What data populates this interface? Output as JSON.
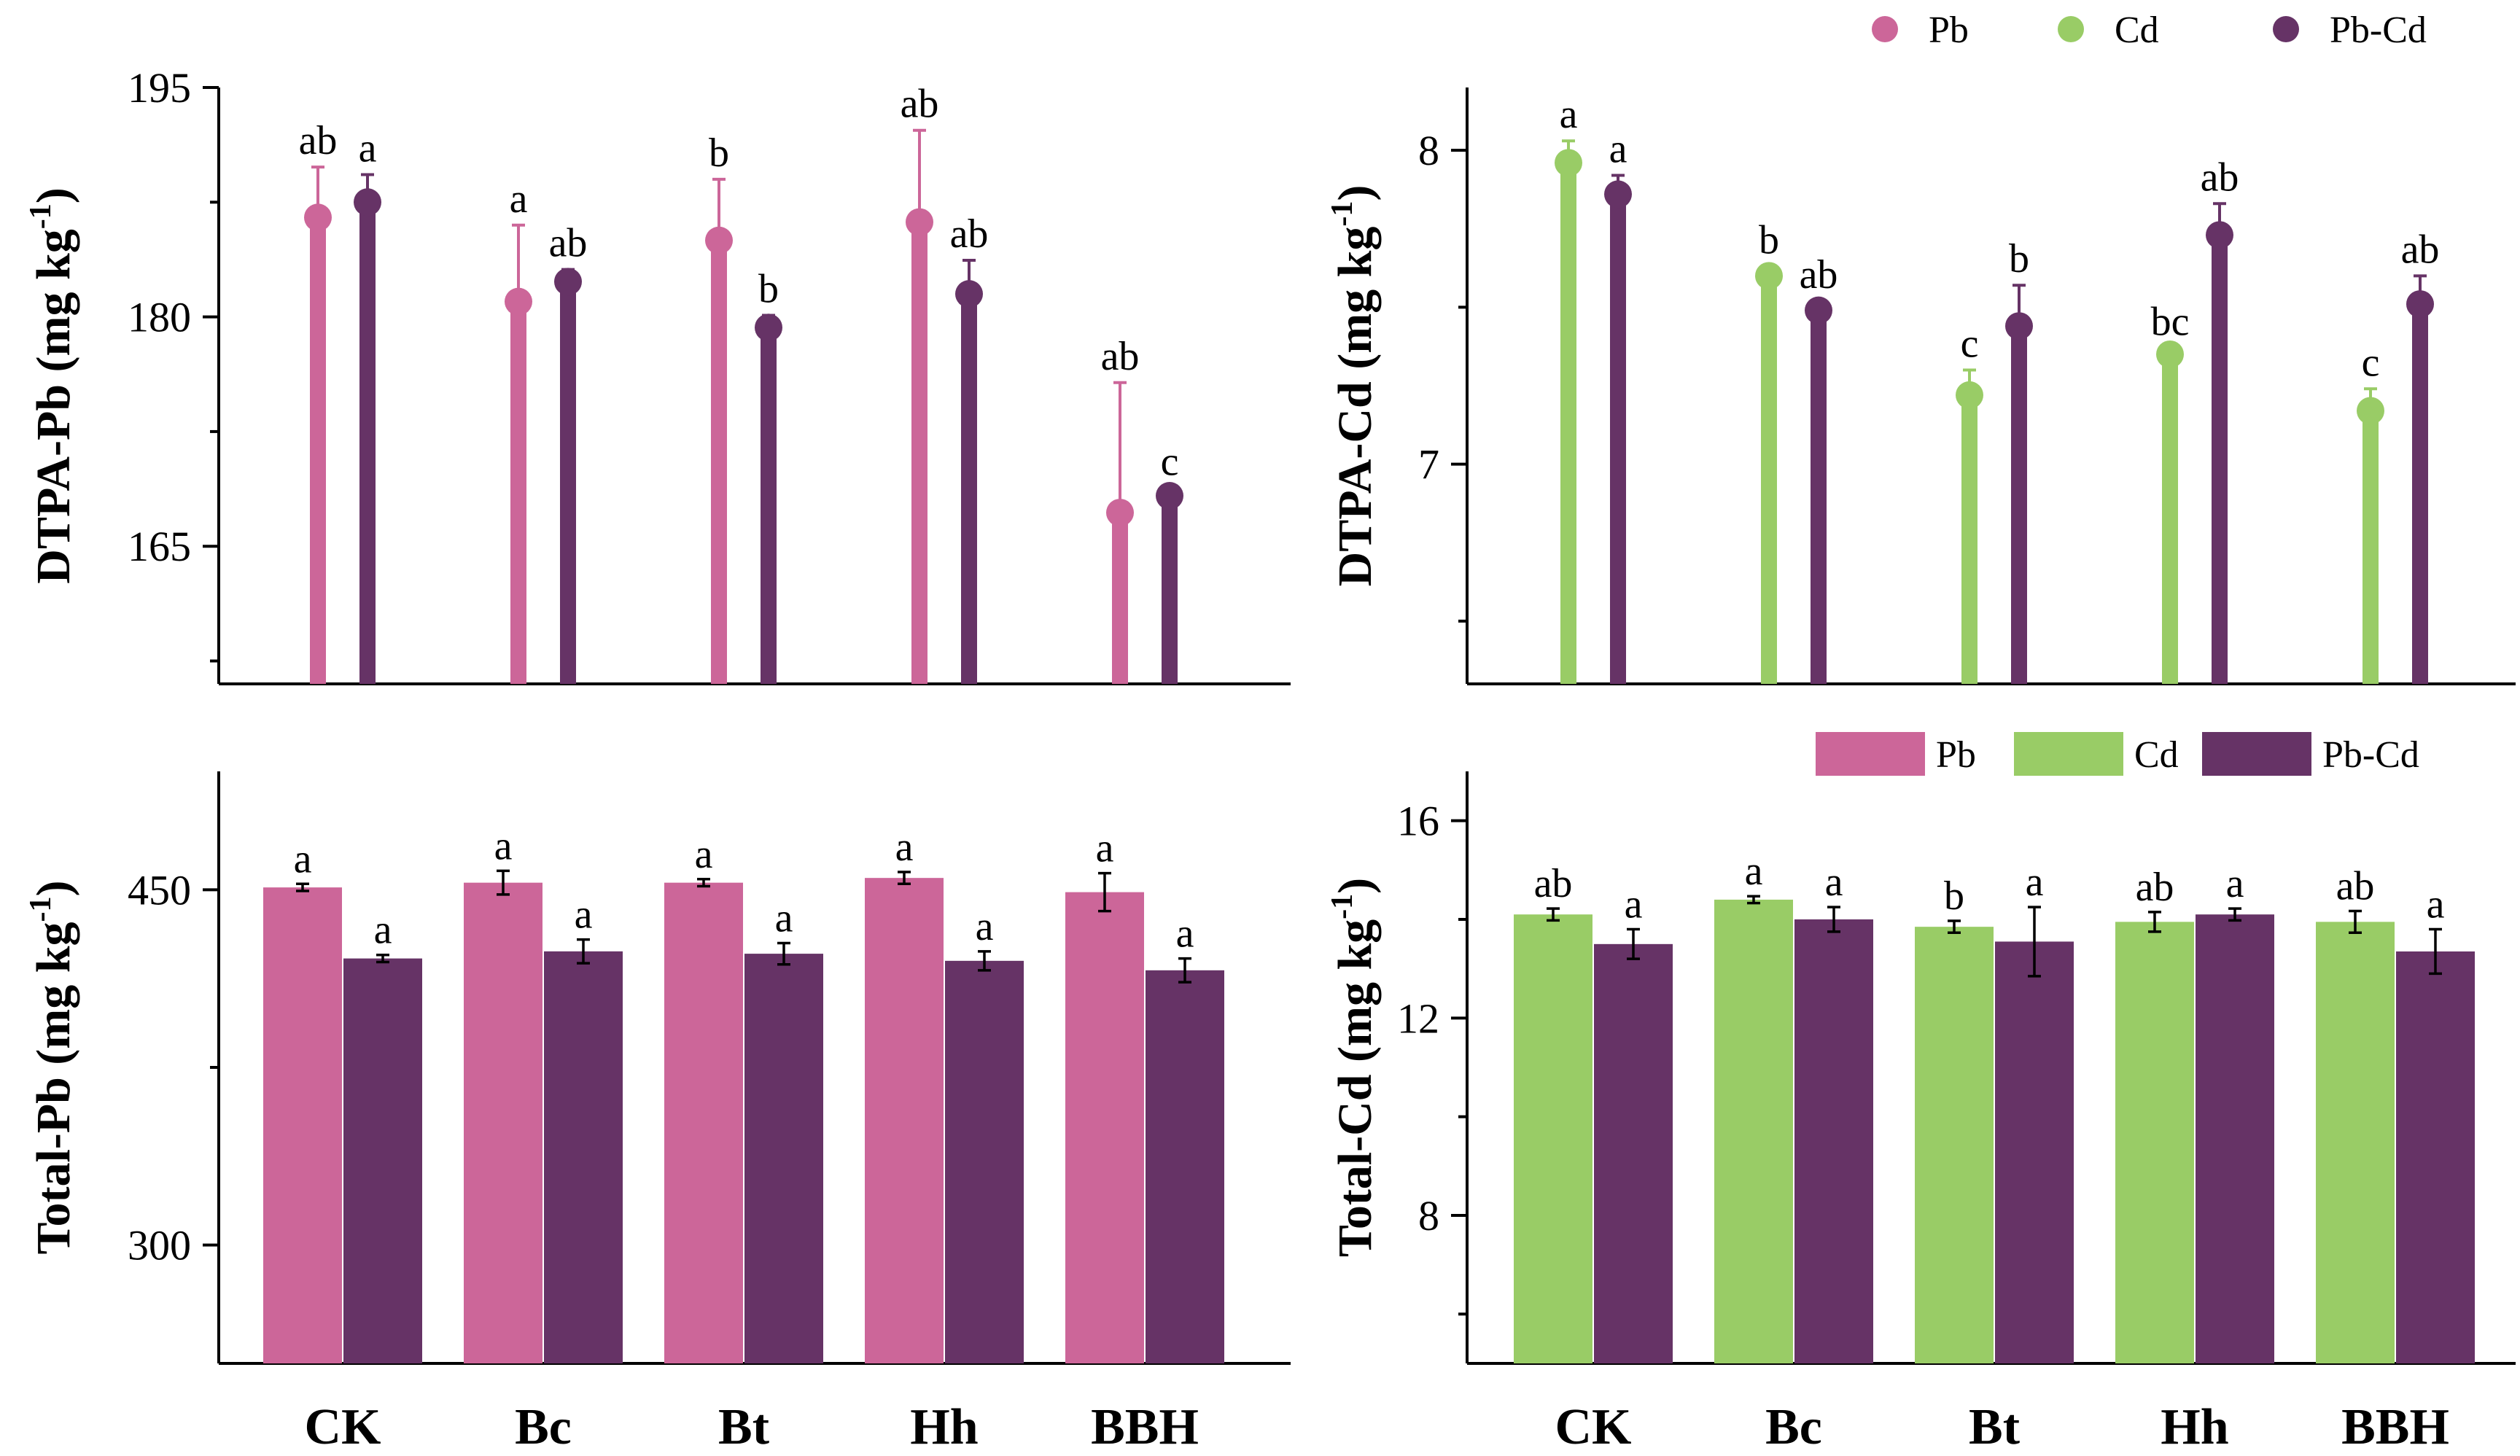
{
  "colors": {
    "pb": "#CC6699",
    "cd": "#99CC66",
    "pbcd": "#663366",
    "axis": "#000000"
  },
  "legend_lollipop": [
    {
      "key": "pb",
      "label": "Pb"
    },
    {
      "key": "cd",
      "label": "Cd"
    },
    {
      "key": "pbcd",
      "label": "Pb-Cd"
    }
  ],
  "legend_bar": [
    {
      "key": "pb",
      "label": "Pb"
    },
    {
      "key": "cd",
      "label": "Cd"
    },
    {
      "key": "pbcd",
      "label": "Pb-Cd"
    }
  ],
  "chart_data": [
    {
      "id": "dtpa-pb",
      "type": "lollipop",
      "ylabel": "DTPA-Pb (mg kg",
      "ylabel_sup": "-1",
      "ylabel_tail": ")",
      "ylim": [
        156,
        195
      ],
      "yticks": [
        165,
        180,
        195
      ],
      "minor_ticks": [
        157.5,
        172.5,
        187.5
      ],
      "categories": [
        "CK",
        "Bc",
        "Bt",
        "Hh",
        "BBH"
      ],
      "series": [
        {
          "name": "Pb",
          "key": "pb",
          "values": [
            186.5,
            181.0,
            185.0,
            186.2,
            167.2
          ],
          "errors": [
            3.3,
            5.0,
            4.0,
            6.0,
            8.5
          ],
          "labels": [
            "ab",
            "a",
            "b",
            "ab",
            "ab"
          ]
        },
        {
          "name": "Pb-Cd",
          "key": "pbcd",
          "values": [
            187.5,
            182.3,
            179.3,
            181.5,
            168.3
          ],
          "errors": [
            1.8,
            0.8,
            0.8,
            2.2,
            0.5
          ],
          "labels": [
            "a",
            "ab",
            "b",
            "ab",
            "c"
          ]
        }
      ]
    },
    {
      "id": "dtpa-cd",
      "type": "lollipop",
      "ylabel": "DTPA-Cd (mg kg",
      "ylabel_sup": "-1",
      "ylabel_tail": ")",
      "ylim": [
        6.3,
        8.2
      ],
      "yticks": [
        7,
        8
      ],
      "minor_ticks": [
        6.5,
        7.5
      ],
      "categories": [
        "CK",
        "Bc",
        "Bt",
        "Hh",
        "BBH"
      ],
      "series": [
        {
          "name": "Cd",
          "key": "cd",
          "values": [
            7.96,
            7.6,
            7.22,
            7.35,
            7.17
          ],
          "errors": [
            0.07,
            0.03,
            0.08,
            0.02,
            0.07
          ],
          "labels": [
            "a",
            "b",
            "c",
            "bc",
            "c"
          ]
        },
        {
          "name": "Pb-Cd",
          "key": "pbcd",
          "values": [
            7.86,
            7.49,
            7.44,
            7.73,
            7.51
          ],
          "errors": [
            0.06,
            0.03,
            0.13,
            0.1,
            0.09
          ],
          "labels": [
            "a",
            "ab",
            "b",
            "ab",
            "ab"
          ]
        }
      ]
    },
    {
      "id": "total-pb",
      "type": "bar",
      "ylabel": "Total-Pb (mg kg",
      "ylabel_sup": "-1",
      "ylabel_tail": ")",
      "ylim": [
        250,
        500
      ],
      "yticks": [
        300,
        450
      ],
      "minor_ticks": [
        375
      ],
      "categories": [
        "CK",
        "Bc",
        "Bt",
        "Hh",
        "BBH"
      ],
      "series": [
        {
          "name": "Pb",
          "key": "pb",
          "values": [
            451,
            453,
            453,
            455,
            449
          ],
          "errors": [
            1.5,
            5.0,
            1.5,
            2.5,
            8.0
          ],
          "labels": [
            "a",
            "a",
            "a",
            "a",
            "a"
          ]
        },
        {
          "name": "Pb-Cd",
          "key": "pbcd",
          "values": [
            421,
            424,
            423,
            420,
            416
          ],
          "errors": [
            1.5,
            5.0,
            4.5,
            4.0,
            5.0
          ],
          "labels": [
            "a",
            "a",
            "a",
            "a",
            "a"
          ]
        }
      ]
    },
    {
      "id": "total-cd",
      "type": "bar",
      "ylabel": "Total-Cd (mg kg",
      "ylabel_sup": "-1",
      "ylabel_tail": ")",
      "ylim": [
        5,
        17
      ],
      "yticks": [
        8,
        12,
        16
      ],
      "minor_ticks": [
        6,
        10,
        14
      ],
      "categories": [
        "CK",
        "Bc",
        "Bt",
        "Hh",
        "BBH"
      ],
      "series": [
        {
          "name": "Cd",
          "key": "cd",
          "values": [
            14.1,
            14.4,
            13.85,
            13.95,
            13.95
          ],
          "errors": [
            0.12,
            0.07,
            0.12,
            0.2,
            0.22
          ],
          "labels": [
            "ab",
            "a",
            "b",
            "ab",
            "ab"
          ]
        },
        {
          "name": "Pb-Cd",
          "key": "pbcd",
          "values": [
            13.5,
            14.0,
            13.55,
            14.1,
            13.35
          ],
          "errors": [
            0.3,
            0.25,
            0.7,
            0.12,
            0.45
          ],
          "labels": [
            "a",
            "a",
            "a",
            "a",
            "a"
          ]
        }
      ]
    }
  ]
}
